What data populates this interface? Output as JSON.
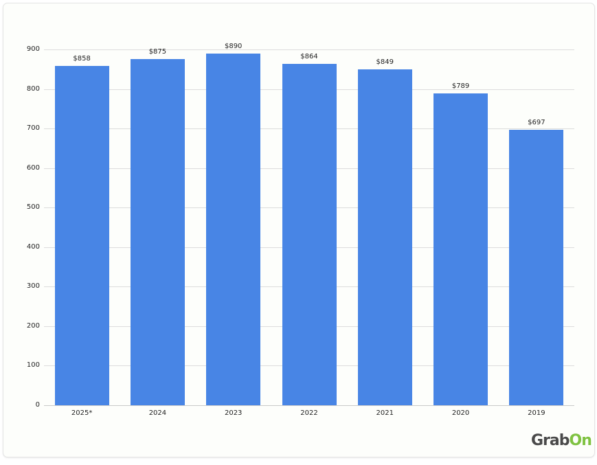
{
  "chart_data": {
    "type": "bar",
    "title": "",
    "xlabel": "",
    "ylabel": "",
    "categories": [
      "2025*",
      "2024",
      "2023",
      "2022",
      "2021",
      "2020",
      "2019"
    ],
    "values": [
      858,
      875,
      890,
      864,
      849,
      789,
      697
    ],
    "value_labels": [
      "$858",
      "$875",
      "$890",
      "$864",
      "$849",
      "$789",
      "$697"
    ],
    "ylim": [
      0,
      900
    ],
    "yticks": [
      0,
      100,
      200,
      300,
      400,
      500,
      600,
      700,
      800,
      900
    ],
    "grid": true,
    "legend": null,
    "bar_color": "#4885e5"
  },
  "branding": {
    "logo_text_1": "Grab",
    "logo_text_2": "On",
    "logo_color_1": "#4a4a4a",
    "logo_color_2": "#7fc241"
  }
}
